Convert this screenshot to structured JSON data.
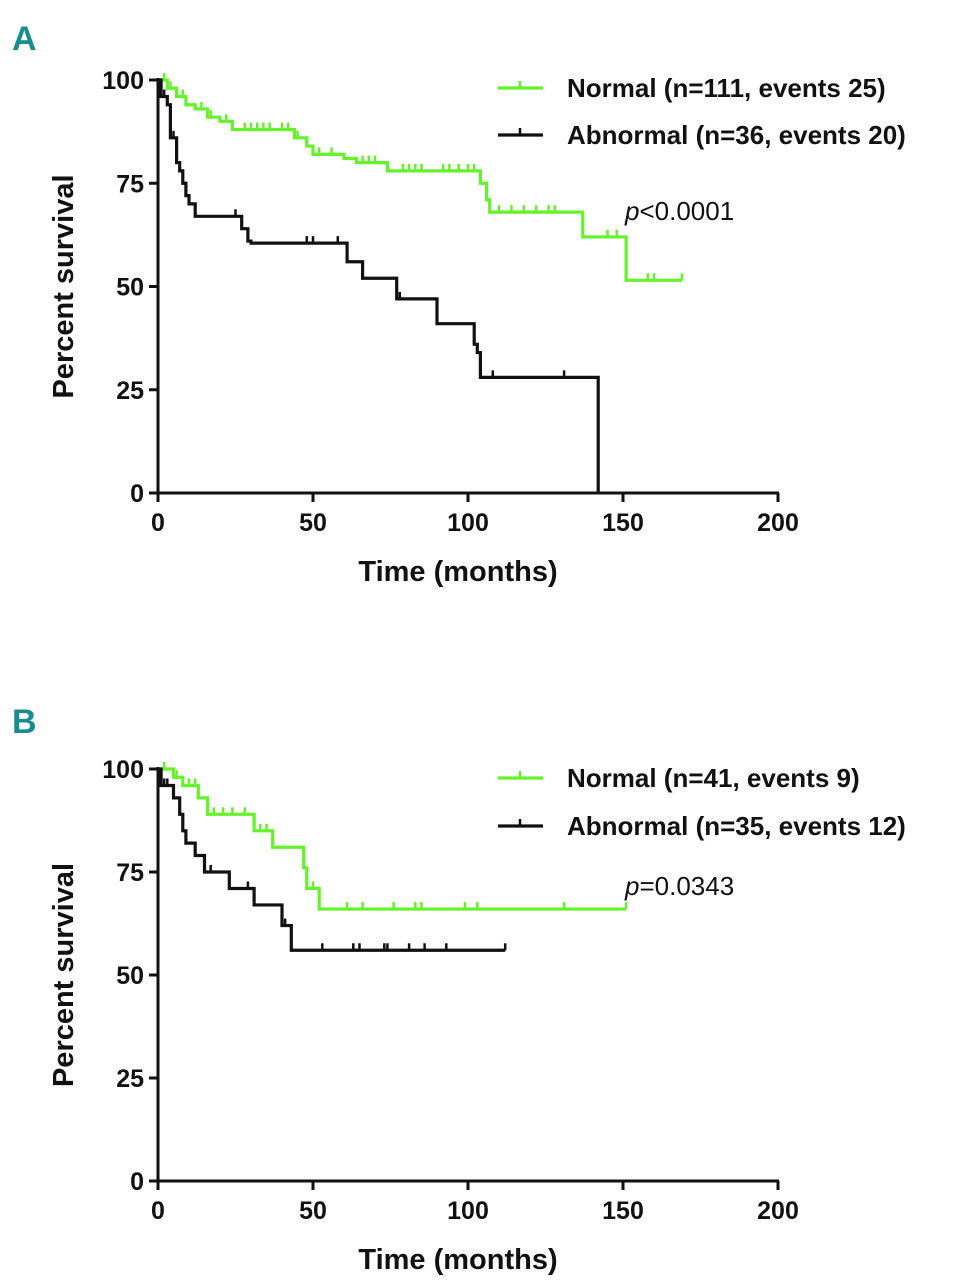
{
  "colors": {
    "normal": "#66f22a",
    "abnormal": "#111111",
    "panel_label": "#1b8c8e"
  },
  "chart_data": [
    {
      "panel": "A",
      "type": "line",
      "subtype": "kaplan-meier",
      "xlabel": "Time (months)",
      "ylabel": "Percent survival",
      "xlim": [
        0,
        200
      ],
      "ylim": [
        0,
        100
      ],
      "xticks": [
        "0",
        "50",
        "100",
        "150",
        "200"
      ],
      "yticks": [
        "0",
        "25",
        "50",
        "75",
        "100"
      ],
      "annotation_prefix": "p",
      "annotation_value": "<0.0001",
      "legend_position": "top-right",
      "series": [
        {
          "name": "Normal (n=111, events 25)",
          "key": "normal",
          "steps": [
            [
              0,
              100
            ],
            [
              3,
              98
            ],
            [
              6,
              96
            ],
            [
              9,
              94
            ],
            [
              12,
              93
            ],
            [
              16,
              91
            ],
            [
              20,
              90
            ],
            [
              24,
              88
            ],
            [
              44,
              86
            ],
            [
              48,
              84
            ],
            [
              50,
              82
            ],
            [
              60,
              81
            ],
            [
              64,
              80
            ],
            [
              74,
              78
            ],
            [
              103,
              78
            ],
            [
              104,
              75
            ],
            [
              106,
              71
            ],
            [
              107,
              68
            ],
            [
              137,
              62
            ],
            [
              151,
              51.5
            ],
            [
              169,
              51.5
            ]
          ],
          "censored": [
            2,
            4,
            6,
            8,
            14,
            17,
            22,
            28,
            30,
            32,
            34,
            36,
            40,
            42,
            45,
            52,
            56,
            66,
            68,
            70,
            79,
            81,
            83,
            85,
            92,
            94,
            97,
            100,
            102,
            110,
            114,
            118,
            122,
            126,
            128,
            145,
            148,
            158,
            160,
            169
          ]
        },
        {
          "name": "Abnormal (n=36, events 20)",
          "key": "abnormal",
          "steps": [
            [
              0,
              100
            ],
            [
              1,
              96
            ],
            [
              3,
              94
            ],
            [
              4,
              86
            ],
            [
              6,
              80
            ],
            [
              7,
              78
            ],
            [
              8,
              75
            ],
            [
              9,
              72
            ],
            [
              10,
              70
            ],
            [
              12,
              67
            ],
            [
              27,
              64
            ],
            [
              29,
              61
            ],
            [
              30,
              60.5
            ],
            [
              61,
              56
            ],
            [
              66,
              52
            ],
            [
              77,
              47
            ],
            [
              90,
              41
            ],
            [
              102,
              36
            ],
            [
              103,
              34
            ],
            [
              104,
              28
            ],
            [
              142,
              28
            ],
            [
              142,
              0
            ]
          ],
          "censored": [
            2,
            5,
            25,
            29,
            48,
            50,
            58,
            78,
            103,
            108,
            131
          ]
        }
      ]
    },
    {
      "panel": "B",
      "type": "line",
      "subtype": "kaplan-meier",
      "xlabel": "Time (months)",
      "ylabel": "Percent survival",
      "xlim": [
        0,
        200
      ],
      "ylim": [
        0,
        100
      ],
      "xticks": [
        "0",
        "50",
        "100",
        "150",
        "200"
      ],
      "yticks": [
        "0",
        "25",
        "50",
        "75",
        "100"
      ],
      "annotation_prefix": "p",
      "annotation_value": "=0.0343",
      "legend_position": "top-right",
      "series": [
        {
          "name": "Normal (n=41, events 9)",
          "key": "normal",
          "steps": [
            [
              0,
              100
            ],
            [
              5,
              98
            ],
            [
              8,
              96
            ],
            [
              13,
              93
            ],
            [
              16,
              89
            ],
            [
              31,
              85
            ],
            [
              37,
              81
            ],
            [
              47,
              76
            ],
            [
              48,
              71
            ],
            [
              51,
              71
            ],
            [
              52,
              66
            ],
            [
              151,
              66
            ]
          ],
          "censored": [
            2,
            6,
            10,
            12,
            18,
            21,
            24,
            28,
            33,
            35,
            50,
            61,
            66,
            76,
            83,
            85,
            99,
            103,
            131,
            151
          ]
        },
        {
          "name": "Abnormal (n=35, events 12)",
          "key": "abnormal",
          "steps": [
            [
              0,
              100
            ],
            [
              1,
              96
            ],
            [
              5,
              93
            ],
            [
              7,
              89
            ],
            [
              8,
              85
            ],
            [
              9,
              82
            ],
            [
              12,
              79
            ],
            [
              15,
              75
            ],
            [
              23,
              71
            ],
            [
              31,
              67
            ],
            [
              40,
              62
            ],
            [
              43,
              56
            ],
            [
              112,
              56
            ]
          ],
          "censored": [
            2,
            3,
            9,
            15,
            17,
            29,
            41,
            53,
            63,
            65,
            73,
            74,
            81,
            86,
            93,
            112
          ]
        }
      ]
    }
  ]
}
